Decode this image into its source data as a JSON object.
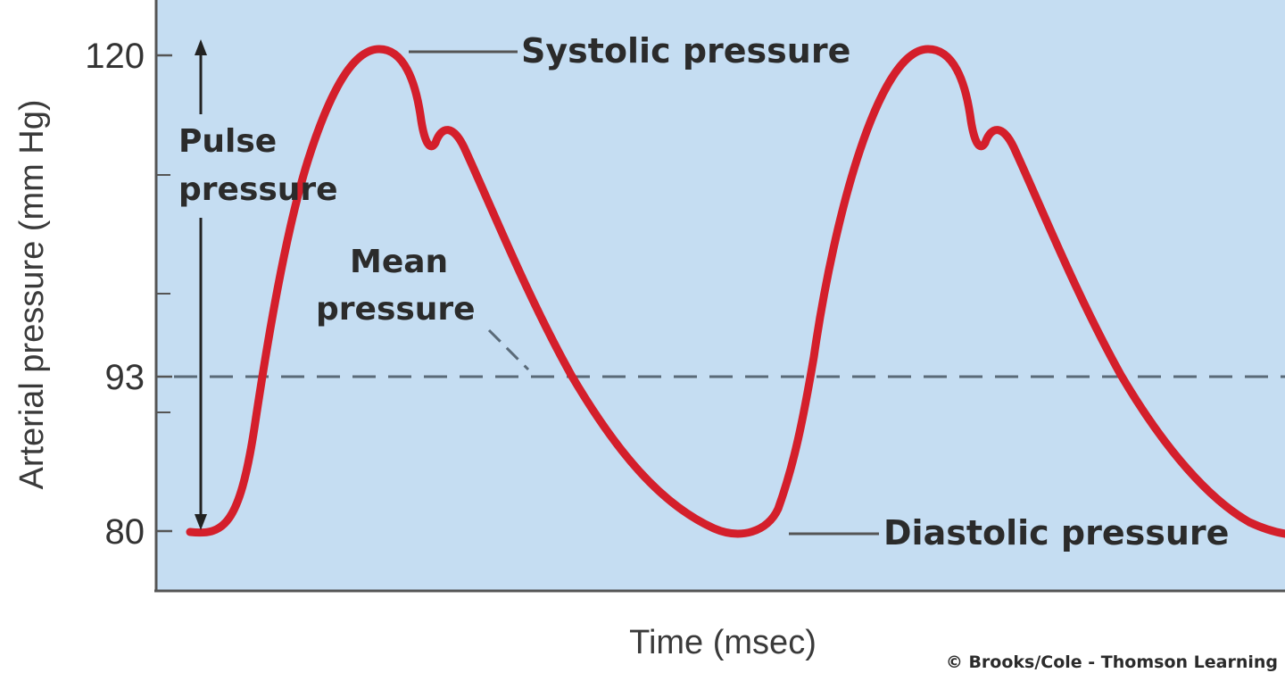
{
  "figure": {
    "y_axis_title": "Arterial pressure (mm Hg)",
    "x_axis_title": "Time (msec)",
    "credit": "© Brooks/Cole - Thomson Learning",
    "colors": {
      "plot_background": "#c5ddf2",
      "curve": "#d41f2b",
      "axis": "#555555",
      "text": "#2b2b2b",
      "mean_line": "#5a6a78"
    }
  },
  "chart_data": {
    "type": "line",
    "y_ticks": [
      {
        "value": 120,
        "label": "120"
      },
      {
        "value": 93,
        "label": "93"
      },
      {
        "value": 80,
        "label": "80"
      }
    ],
    "annotations": {
      "systolic": "Systolic pressure",
      "diastolic": "Diastolic pressure",
      "pulse_line1": "Pulse",
      "pulse_line2": "pressure",
      "mean_line1": "Mean",
      "mean_line2": "pressure"
    },
    "mean_pressure": 93,
    "systolic_pressure": 120,
    "diastolic_pressure": 80
  }
}
